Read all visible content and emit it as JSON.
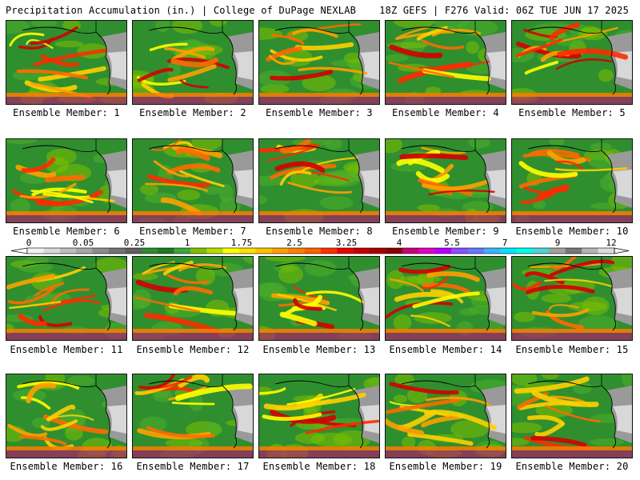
{
  "header": {
    "left_title": "Precipitation Accumulation (in.) | College of DuPage NEXLAB",
    "right_title": "18Z GEFS | F276 Valid: 06Z TUE JUN 17 2025"
  },
  "panels": [
    {
      "label": "Ensemble Member: 1"
    },
    {
      "label": "Ensemble Member: 2"
    },
    {
      "label": "Ensemble Member: 3"
    },
    {
      "label": "Ensemble Member: 4"
    },
    {
      "label": "Ensemble Member: 5"
    },
    {
      "label": "Ensemble Member: 6"
    },
    {
      "label": "Ensemble Member: 7"
    },
    {
      "label": "Ensemble Member: 8"
    },
    {
      "label": "Ensemble Member: 9"
    },
    {
      "label": "Ensemble Member: 10"
    },
    {
      "label": "Ensemble Member: 11"
    },
    {
      "label": "Ensemble Member: 12"
    },
    {
      "label": "Ensemble Member: 13"
    },
    {
      "label": "Ensemble Member: 14"
    },
    {
      "label": "Ensemble Member: 15"
    },
    {
      "label": "Ensemble Member: 16"
    },
    {
      "label": "Ensemble Member: 17"
    },
    {
      "label": "Ensemble Member: 18"
    },
    {
      "label": "Ensemble Member: 19"
    },
    {
      "label": "Ensemble Member: 20"
    }
  ],
  "colorbar": {
    "ticks": [
      "0",
      "0.05",
      "0.25",
      "1",
      "1.75",
      "2.5",
      "3.25",
      "4",
      "5.5",
      "7",
      "9",
      "12"
    ],
    "colors": [
      "#f2f2f2",
      "#d9d9d9",
      "#bfbfbf",
      "#a6a6a6",
      "#8c8c8c",
      "#737373",
      "#5f5f5f",
      "#2e8b2e",
      "#1f7a1f",
      "#3aa83a",
      "#7cc000",
      "#b7dc00",
      "#ffff00",
      "#ffe000",
      "#ffc000",
      "#ffa000",
      "#ff8000",
      "#ff6000",
      "#ff3000",
      "#ee0000",
      "#c80000",
      "#aa0000",
      "#8a0000",
      "#c8007a",
      "#e000c8",
      "#b400ff",
      "#8c50ff",
      "#6478ff",
      "#3cb4ff",
      "#00e6ff",
      "#00ffe6",
      "#50d2d2",
      "#a0a0a0",
      "#787878",
      "#b4b4b4",
      "#dcdcdc"
    ]
  }
}
